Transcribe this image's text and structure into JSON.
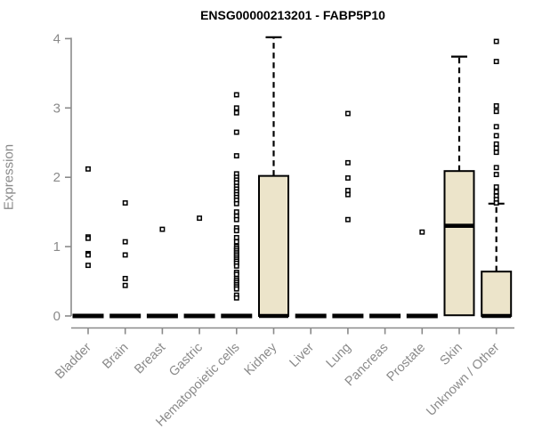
{
  "chart_data": {
    "type": "boxplot",
    "title": "ENSG00000213201 - FABP5P10",
    "ylabel": "Expression",
    "xlabel": "",
    "ylim": [
      0,
      4
    ],
    "yticks": [
      "0",
      "1",
      "2",
      "3",
      "4"
    ],
    "grid": false,
    "legend": null,
    "colors": {
      "box_fill": "#ece4ca",
      "box_border": "#000000",
      "median": "#000000",
      "whisker": "#000000",
      "axis": "#8a8a8a",
      "tick_label": "#8a8a8a",
      "title": "#000000",
      "background": "#ffffff"
    },
    "categories": [
      "Bladder",
      "Brain",
      "Breast",
      "Gastric",
      "Hematopoietic cells",
      "Kidney",
      "Liver",
      "Lung",
      "Pancreas",
      "Prostate",
      "Skin",
      "Unknown / Other"
    ],
    "series": [
      {
        "name": "Bladder",
        "q1": 0,
        "median": 0,
        "q3": 0,
        "whisker_low": 0,
        "whisker_high": 0,
        "outliers": [
          2.12,
          1.14,
          1.12,
          0.9,
          0.88,
          0.73
        ]
      },
      {
        "name": "Brain",
        "q1": 0,
        "median": 0,
        "q3": 0,
        "whisker_low": 0,
        "whisker_high": 0,
        "outliers": [
          1.63,
          1.07,
          0.88,
          0.54,
          0.44
        ]
      },
      {
        "name": "Breast",
        "q1": 0,
        "median": 0,
        "q3": 0,
        "whisker_low": 0,
        "whisker_high": 0,
        "outliers": [
          1.25
        ]
      },
      {
        "name": "Gastric",
        "q1": 0,
        "median": 0,
        "q3": 0,
        "whisker_low": 0,
        "whisker_high": 0,
        "outliers": [
          1.41
        ]
      },
      {
        "name": "Hematopoietic cells",
        "q1": 0,
        "median": 0,
        "q3": 0,
        "whisker_low": 0,
        "whisker_high": 0,
        "outliers": [
          3.19,
          3.0,
          2.93,
          2.65,
          2.31,
          2.05,
          2.0,
          1.96,
          1.92,
          1.87,
          1.83,
          1.79,
          1.75,
          1.71,
          1.67,
          1.62,
          1.5,
          1.44,
          1.39,
          1.27,
          1.23,
          1.13,
          1.07,
          1.0,
          0.97,
          0.94,
          0.91,
          0.88,
          0.85,
          0.82,
          0.79,
          0.76,
          0.72,
          0.63,
          0.6,
          0.54,
          0.51,
          0.48,
          0.45,
          0.42,
          0.39,
          0.3,
          0.26
        ]
      },
      {
        "name": "Kidney",
        "q1": 0,
        "median": 0,
        "q3": 2.02,
        "whisker_low": 0,
        "whisker_high": 4.02,
        "outliers": []
      },
      {
        "name": "Liver",
        "q1": 0,
        "median": 0,
        "q3": 0,
        "whisker_low": 0,
        "whisker_high": 0,
        "outliers": []
      },
      {
        "name": "Lung",
        "q1": 0,
        "median": 0,
        "q3": 0,
        "whisker_low": 0,
        "whisker_high": 0,
        "outliers": [
          2.92,
          2.21,
          1.99,
          1.81,
          1.75,
          1.39
        ]
      },
      {
        "name": "Pancreas",
        "q1": 0,
        "median": 0,
        "q3": 0,
        "whisker_low": 0,
        "whisker_high": 0,
        "outliers": []
      },
      {
        "name": "Prostate",
        "q1": 0,
        "median": 0,
        "q3": 0,
        "whisker_low": 0,
        "whisker_high": 0,
        "outliers": [
          1.21
        ]
      },
      {
        "name": "Skin",
        "q1": 0.01,
        "median": 1.3,
        "q3": 2.09,
        "whisker_low": 0.01,
        "whisker_high": 3.74,
        "outliers": []
      },
      {
        "name": "Unknown / Other",
        "q1": 0,
        "median": 0,
        "q3": 0.64,
        "whisker_low": 0,
        "whisker_high": 1.62,
        "outliers": [
          3.96,
          3.67,
          3.03,
          2.95,
          2.73,
          2.6,
          2.48,
          2.42,
          2.36,
          2.14,
          2.04,
          1.86,
          1.79,
          1.73,
          1.68,
          1.63
        ]
      }
    ]
  }
}
